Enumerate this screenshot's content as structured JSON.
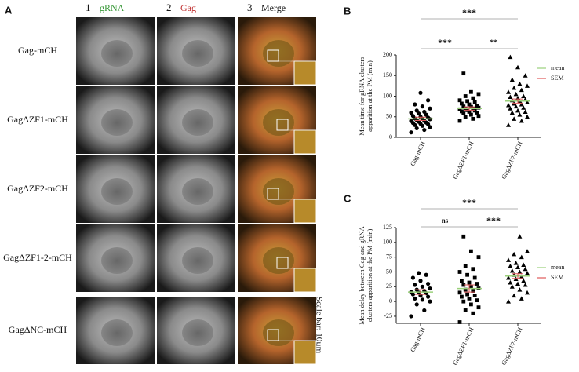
{
  "panel_a": {
    "label": "A",
    "columns": [
      {
        "number": "1",
        "name": "gRNA"
      },
      {
        "number": "2",
        "name": "Gag"
      },
      {
        "number": "3",
        "name": "Merge"
      }
    ],
    "rows": [
      "Gag-mCH",
      "GagΔZF1-mCH",
      "GagΔZF2-mCH",
      "GagΔZF1-2-mCH",
      "GagΔNC-mCH"
    ],
    "scale_bar": "Scale bar: 10µm"
  },
  "chart_data": [
    {
      "type": "strip",
      "label": "B",
      "ylabel": [
        "Mean time for gRNA clusters",
        "apparition at the PM (min)"
      ],
      "categories": [
        "Gag-mCH",
        "GagΔZF1-mCH",
        "GagΔZF2-mCH"
      ],
      "ylim": [
        0,
        200
      ],
      "yticks": [
        0,
        50,
        100,
        150,
        200
      ],
      "mean_color": "#9ad07a",
      "sem_color": "#e05a5a",
      "legend": [
        "mean",
        "SEM"
      ],
      "series": [
        {
          "marker": "circle",
          "mean": 45,
          "sem": 4,
          "values": [
            12,
            18,
            22,
            25,
            28,
            30,
            32,
            33,
            35,
            36,
            38,
            40,
            40,
            42,
            44,
            45,
            46,
            48,
            50,
            52,
            55,
            58,
            60,
            62,
            65,
            70,
            75,
            80,
            90,
            108
          ]
        },
        {
          "marker": "square",
          "mean": 70,
          "sem": 4,
          "values": [
            40,
            45,
            50,
            52,
            55,
            58,
            60,
            62,
            63,
            65,
            66,
            68,
            70,
            70,
            72,
            74,
            75,
            77,
            80,
            82,
            85,
            88,
            90,
            95,
            100,
            105,
            110,
            155
          ]
        },
        {
          "marker": "triangle",
          "mean": 88,
          "sem": 5,
          "values": [
            30,
            40,
            45,
            50,
            55,
            60,
            62,
            65,
            70,
            72,
            75,
            78,
            80,
            82,
            85,
            88,
            90,
            92,
            95,
            98,
            100,
            105,
            110,
            115,
            120,
            125,
            130,
            140,
            150,
            170,
            195
          ]
        }
      ],
      "significance": [
        {
          "from": 0,
          "to": 2,
          "label": "***"
        },
        {
          "from": 0,
          "to": 1,
          "label": "***"
        },
        {
          "from": 1,
          "to": 2,
          "label": "**"
        }
      ]
    },
    {
      "type": "strip",
      "label": "C",
      "ylabel": [
        "Mean delay between Gag and gRNA",
        "clusters apparition at the PM (min)"
      ],
      "categories": [
        "Gag-mCH",
        "GagΔZF1-mCH",
        "GagΔZF2-mCH"
      ],
      "ylim": [
        -37,
        125
      ],
      "yticks": [
        -25,
        0,
        25,
        50,
        75,
        100,
        125
      ],
      "mean_color": "#9ad07a",
      "sem_color": "#e05a5a",
      "legend": [
        "mean",
        "SEM"
      ],
      "series": [
        {
          "marker": "circle",
          "mean": 16,
          "sem": 4,
          "values": [
            -25,
            -15,
            -5,
            0,
            3,
            5,
            8,
            10,
            12,
            14,
            15,
            16,
            18,
            20,
            22,
            25,
            28,
            30,
            35,
            40,
            45,
            48
          ]
        },
        {
          "marker": "square",
          "mean": 22,
          "sem": 6,
          "values": [
            -35,
            -20,
            -15,
            -10,
            -5,
            0,
            2,
            5,
            8,
            10,
            12,
            15,
            18,
            20,
            22,
            25,
            28,
            30,
            32,
            35,
            40,
            45,
            50,
            55,
            60,
            75,
            85,
            110
          ]
        },
        {
          "marker": "triangle",
          "mean": 43,
          "sem": 4,
          "values": [
            0,
            5,
            10,
            15,
            20,
            25,
            28,
            30,
            32,
            35,
            38,
            40,
            42,
            45,
            48,
            50,
            52,
            55,
            58,
            60,
            62,
            65,
            70,
            75,
            80,
            85,
            110
          ]
        }
      ],
      "significance": [
        {
          "from": 0,
          "to": 2,
          "label": "***"
        },
        {
          "from": 0,
          "to": 1,
          "label": "ns"
        },
        {
          "from": 1,
          "to": 2,
          "label": "***"
        }
      ]
    }
  ]
}
